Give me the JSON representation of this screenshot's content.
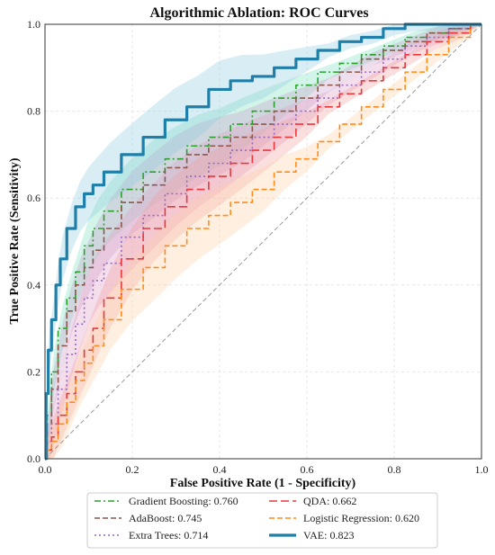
{
  "chart_data": {
    "type": "line",
    "title": "Algorithmic Ablation: ROC Curves",
    "xlabel": "False Positive Rate (1 - Specificity)",
    "ylabel": "True Positive Rate (Sensitivity)",
    "xlim": [
      0,
      1
    ],
    "ylim": [
      0,
      1
    ],
    "xticks": [
      "0.0",
      "0.2",
      "0.4",
      "0.6",
      "0.8",
      "1.0"
    ],
    "yticks": [
      "0.0",
      "0.2",
      "0.4",
      "0.6",
      "0.8",
      "1.0"
    ],
    "grid": true,
    "legend_position": "bottom-center",
    "diagonal_reference": true,
    "series": [
      {
        "name": "Gradient Boosting: 0.760",
        "color": "#2ca02c",
        "band_color": "#7fe0c0",
        "dash": "dashdot",
        "x": [
          0,
          0.01,
          0.02,
          0.04,
          0.06,
          0.08,
          0.1,
          0.12,
          0.15,
          0.2,
          0.25,
          0.3,
          0.35,
          0.4,
          0.45,
          0.5,
          0.55,
          0.6,
          0.65,
          0.7,
          0.75,
          0.8,
          0.85,
          0.9,
          0.95,
          1
        ],
        "y": [
          0,
          0.1,
          0.2,
          0.3,
          0.37,
          0.43,
          0.49,
          0.53,
          0.57,
          0.62,
          0.66,
          0.69,
          0.72,
          0.74,
          0.77,
          0.8,
          0.83,
          0.86,
          0.89,
          0.91,
          0.93,
          0.95,
          0.97,
          0.98,
          0.99,
          1
        ]
      },
      {
        "name": "AdaBoost: 0.745",
        "color": "#8c564b",
        "band_color": "#c8a0c8",
        "dash": "dash",
        "x": [
          0,
          0.01,
          0.02,
          0.04,
          0.06,
          0.08,
          0.1,
          0.12,
          0.15,
          0.2,
          0.25,
          0.3,
          0.35,
          0.4,
          0.45,
          0.5,
          0.55,
          0.6,
          0.65,
          0.7,
          0.75,
          0.8,
          0.85,
          0.9,
          0.95,
          1
        ],
        "y": [
          0,
          0.08,
          0.16,
          0.26,
          0.34,
          0.4,
          0.44,
          0.48,
          0.53,
          0.59,
          0.63,
          0.67,
          0.7,
          0.72,
          0.74,
          0.77,
          0.8,
          0.83,
          0.86,
          0.89,
          0.92,
          0.94,
          0.96,
          0.98,
          0.99,
          1
        ]
      },
      {
        "name": "Extra Trees: 0.714",
        "color": "#9467bd",
        "band_color": "#e0a0c8",
        "dash": "dot",
        "x": [
          0,
          0.01,
          0.02,
          0.04,
          0.06,
          0.08,
          0.1,
          0.12,
          0.15,
          0.2,
          0.25,
          0.3,
          0.35,
          0.4,
          0.45,
          0.5,
          0.55,
          0.6,
          0.65,
          0.7,
          0.75,
          0.8,
          0.85,
          0.9,
          0.95,
          1
        ],
        "y": [
          0,
          0.04,
          0.08,
          0.16,
          0.24,
          0.31,
          0.37,
          0.41,
          0.45,
          0.51,
          0.56,
          0.61,
          0.65,
          0.68,
          0.71,
          0.74,
          0.77,
          0.8,
          0.83,
          0.86,
          0.89,
          0.92,
          0.95,
          0.97,
          0.99,
          1
        ]
      },
      {
        "name": "QDA: 0.662",
        "color": "#e8383d",
        "band_color": "#f4a0a0",
        "dash": "longdash",
        "x": [
          0,
          0.01,
          0.02,
          0.04,
          0.06,
          0.08,
          0.1,
          0.12,
          0.15,
          0.2,
          0.25,
          0.3,
          0.35,
          0.4,
          0.45,
          0.5,
          0.55,
          0.6,
          0.65,
          0.7,
          0.75,
          0.8,
          0.85,
          0.9,
          0.95,
          1
        ],
        "y": [
          0,
          0.02,
          0.05,
          0.1,
          0.15,
          0.2,
          0.25,
          0.3,
          0.37,
          0.46,
          0.53,
          0.58,
          0.62,
          0.65,
          0.68,
          0.71,
          0.74,
          0.77,
          0.81,
          0.84,
          0.87,
          0.9,
          0.93,
          0.96,
          0.98,
          1
        ]
      },
      {
        "name": "Logistic Regression: 0.620",
        "color": "#ff8c1a",
        "band_color": "#fcd0a8",
        "dash": "dash",
        "x": [
          0,
          0.01,
          0.02,
          0.04,
          0.06,
          0.08,
          0.1,
          0.12,
          0.15,
          0.2,
          0.25,
          0.3,
          0.35,
          0.4,
          0.45,
          0.5,
          0.55,
          0.6,
          0.65,
          0.7,
          0.75,
          0.8,
          0.85,
          0.9,
          0.95,
          1
        ],
        "y": [
          0,
          0.02,
          0.04,
          0.08,
          0.13,
          0.18,
          0.22,
          0.26,
          0.32,
          0.39,
          0.44,
          0.49,
          0.53,
          0.56,
          0.59,
          0.62,
          0.66,
          0.69,
          0.73,
          0.77,
          0.81,
          0.85,
          0.89,
          0.93,
          0.97,
          1
        ]
      },
      {
        "name": "VAE: 0.823",
        "color": "#1f7fa8",
        "band_color": "#8ecbe0",
        "dash": "solid",
        "thick": true,
        "x": [
          0,
          0.005,
          0.01,
          0.02,
          0.03,
          0.04,
          0.06,
          0.08,
          0.1,
          0.12,
          0.15,
          0.2,
          0.25,
          0.3,
          0.35,
          0.4,
          0.45,
          0.5,
          0.55,
          0.6,
          0.65,
          0.7,
          0.75,
          0.8,
          0.85,
          0.9,
          0.95,
          1
        ],
        "y": [
          0,
          0.15,
          0.25,
          0.32,
          0.4,
          0.46,
          0.53,
          0.58,
          0.61,
          0.63,
          0.66,
          0.7,
          0.74,
          0.78,
          0.81,
          0.85,
          0.87,
          0.88,
          0.9,
          0.92,
          0.94,
          0.96,
          0.97,
          0.99,
          1.0,
          1.0,
          1.0,
          1
        ]
      }
    ]
  }
}
